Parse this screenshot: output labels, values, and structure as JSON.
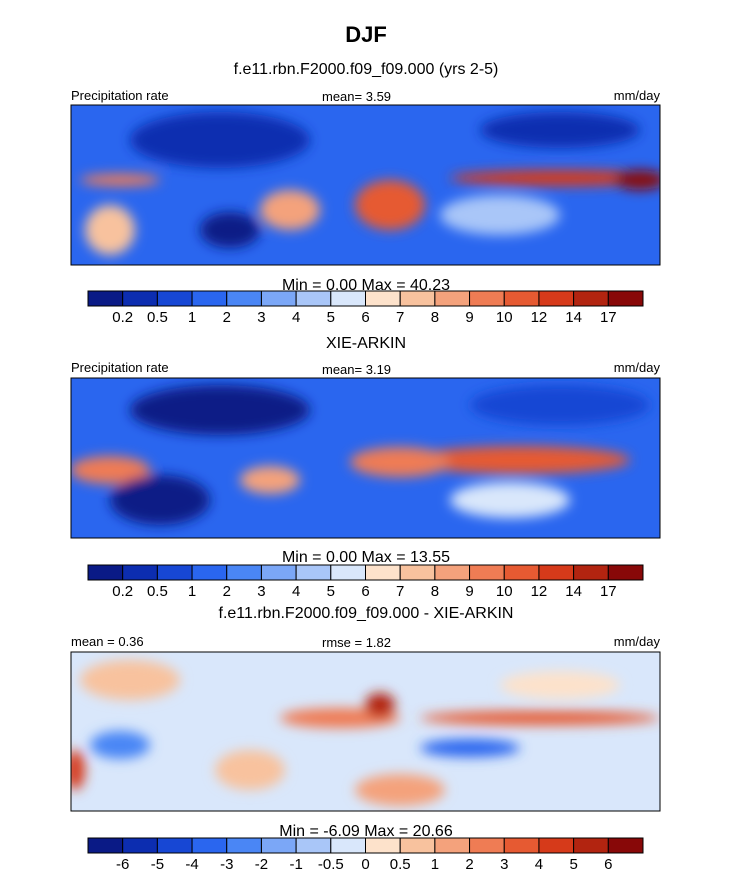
{
  "title": "DJF",
  "panels": [
    {
      "subtitle": "f.e11.rbn.F2000.f09_f09.000 (yrs 2-5)",
      "left": "Precipitation rate",
      "center": "mean=  3.59",
      "right": "mm/day",
      "stats": "Min =   0.00 Max =  40.23",
      "colorbar": {
        "labels": [
          "0.2",
          "0.5",
          "1",
          "2",
          "3",
          "4",
          "5",
          "6",
          "7",
          "8",
          "9",
          "10",
          "12",
          "14",
          "17"
        ],
        "colors": [
          "#0a1a86",
          "#0c2db0",
          "#1747d4",
          "#2a66ef",
          "#4a86f5",
          "#7ba7f7",
          "#a9c6f8",
          "#d9e7fb",
          "#fde2cb",
          "#f8c29e",
          "#f4a27c",
          "#ef7c54",
          "#e65a32",
          "#d63a1a",
          "#b22410",
          "#880808"
        ]
      }
    },
    {
      "subtitle": "XIE-ARKIN",
      "left": "Precipitation rate",
      "center": "mean=  3.19",
      "right": "mm/day",
      "stats": "Min =   0.00 Max =  13.55",
      "colorbar": {
        "labels": [
          "0.2",
          "0.5",
          "1",
          "2",
          "3",
          "4",
          "5",
          "6",
          "7",
          "8",
          "9",
          "10",
          "12",
          "14",
          "17"
        ],
        "colors": [
          "#0a1a86",
          "#0c2db0",
          "#1747d4",
          "#2a66ef",
          "#4a86f5",
          "#7ba7f7",
          "#a9c6f8",
          "#d9e7fb",
          "#fde2cb",
          "#f8c29e",
          "#f4a27c",
          "#ef7c54",
          "#e65a32",
          "#d63a1a",
          "#b22410",
          "#880808"
        ]
      }
    },
    {
      "subtitle": "f.e11.rbn.F2000.f09_f09.000 - XIE-ARKIN",
      "left": "mean =  0.36",
      "center": "rmse =  1.82",
      "right": "mm/day",
      "stats": "Min =  -6.09 Max =  20.66",
      "colorbar": {
        "labels": [
          "-6",
          "-5",
          "-4",
          "-3",
          "-2",
          "-1",
          "-0.5",
          "0",
          "0.5",
          "1",
          "2",
          "3",
          "4",
          "5",
          "6"
        ],
        "colors": [
          "#0a1a86",
          "#0c2db0",
          "#1747d4",
          "#2a66ef",
          "#4a86f5",
          "#7ba7f7",
          "#a9c6f8",
          "#d9e7fb",
          "#fde2cb",
          "#f8c29e",
          "#f4a27c",
          "#ef7c54",
          "#e65a32",
          "#d63a1a",
          "#b22410",
          "#880808"
        ]
      }
    }
  ]
}
